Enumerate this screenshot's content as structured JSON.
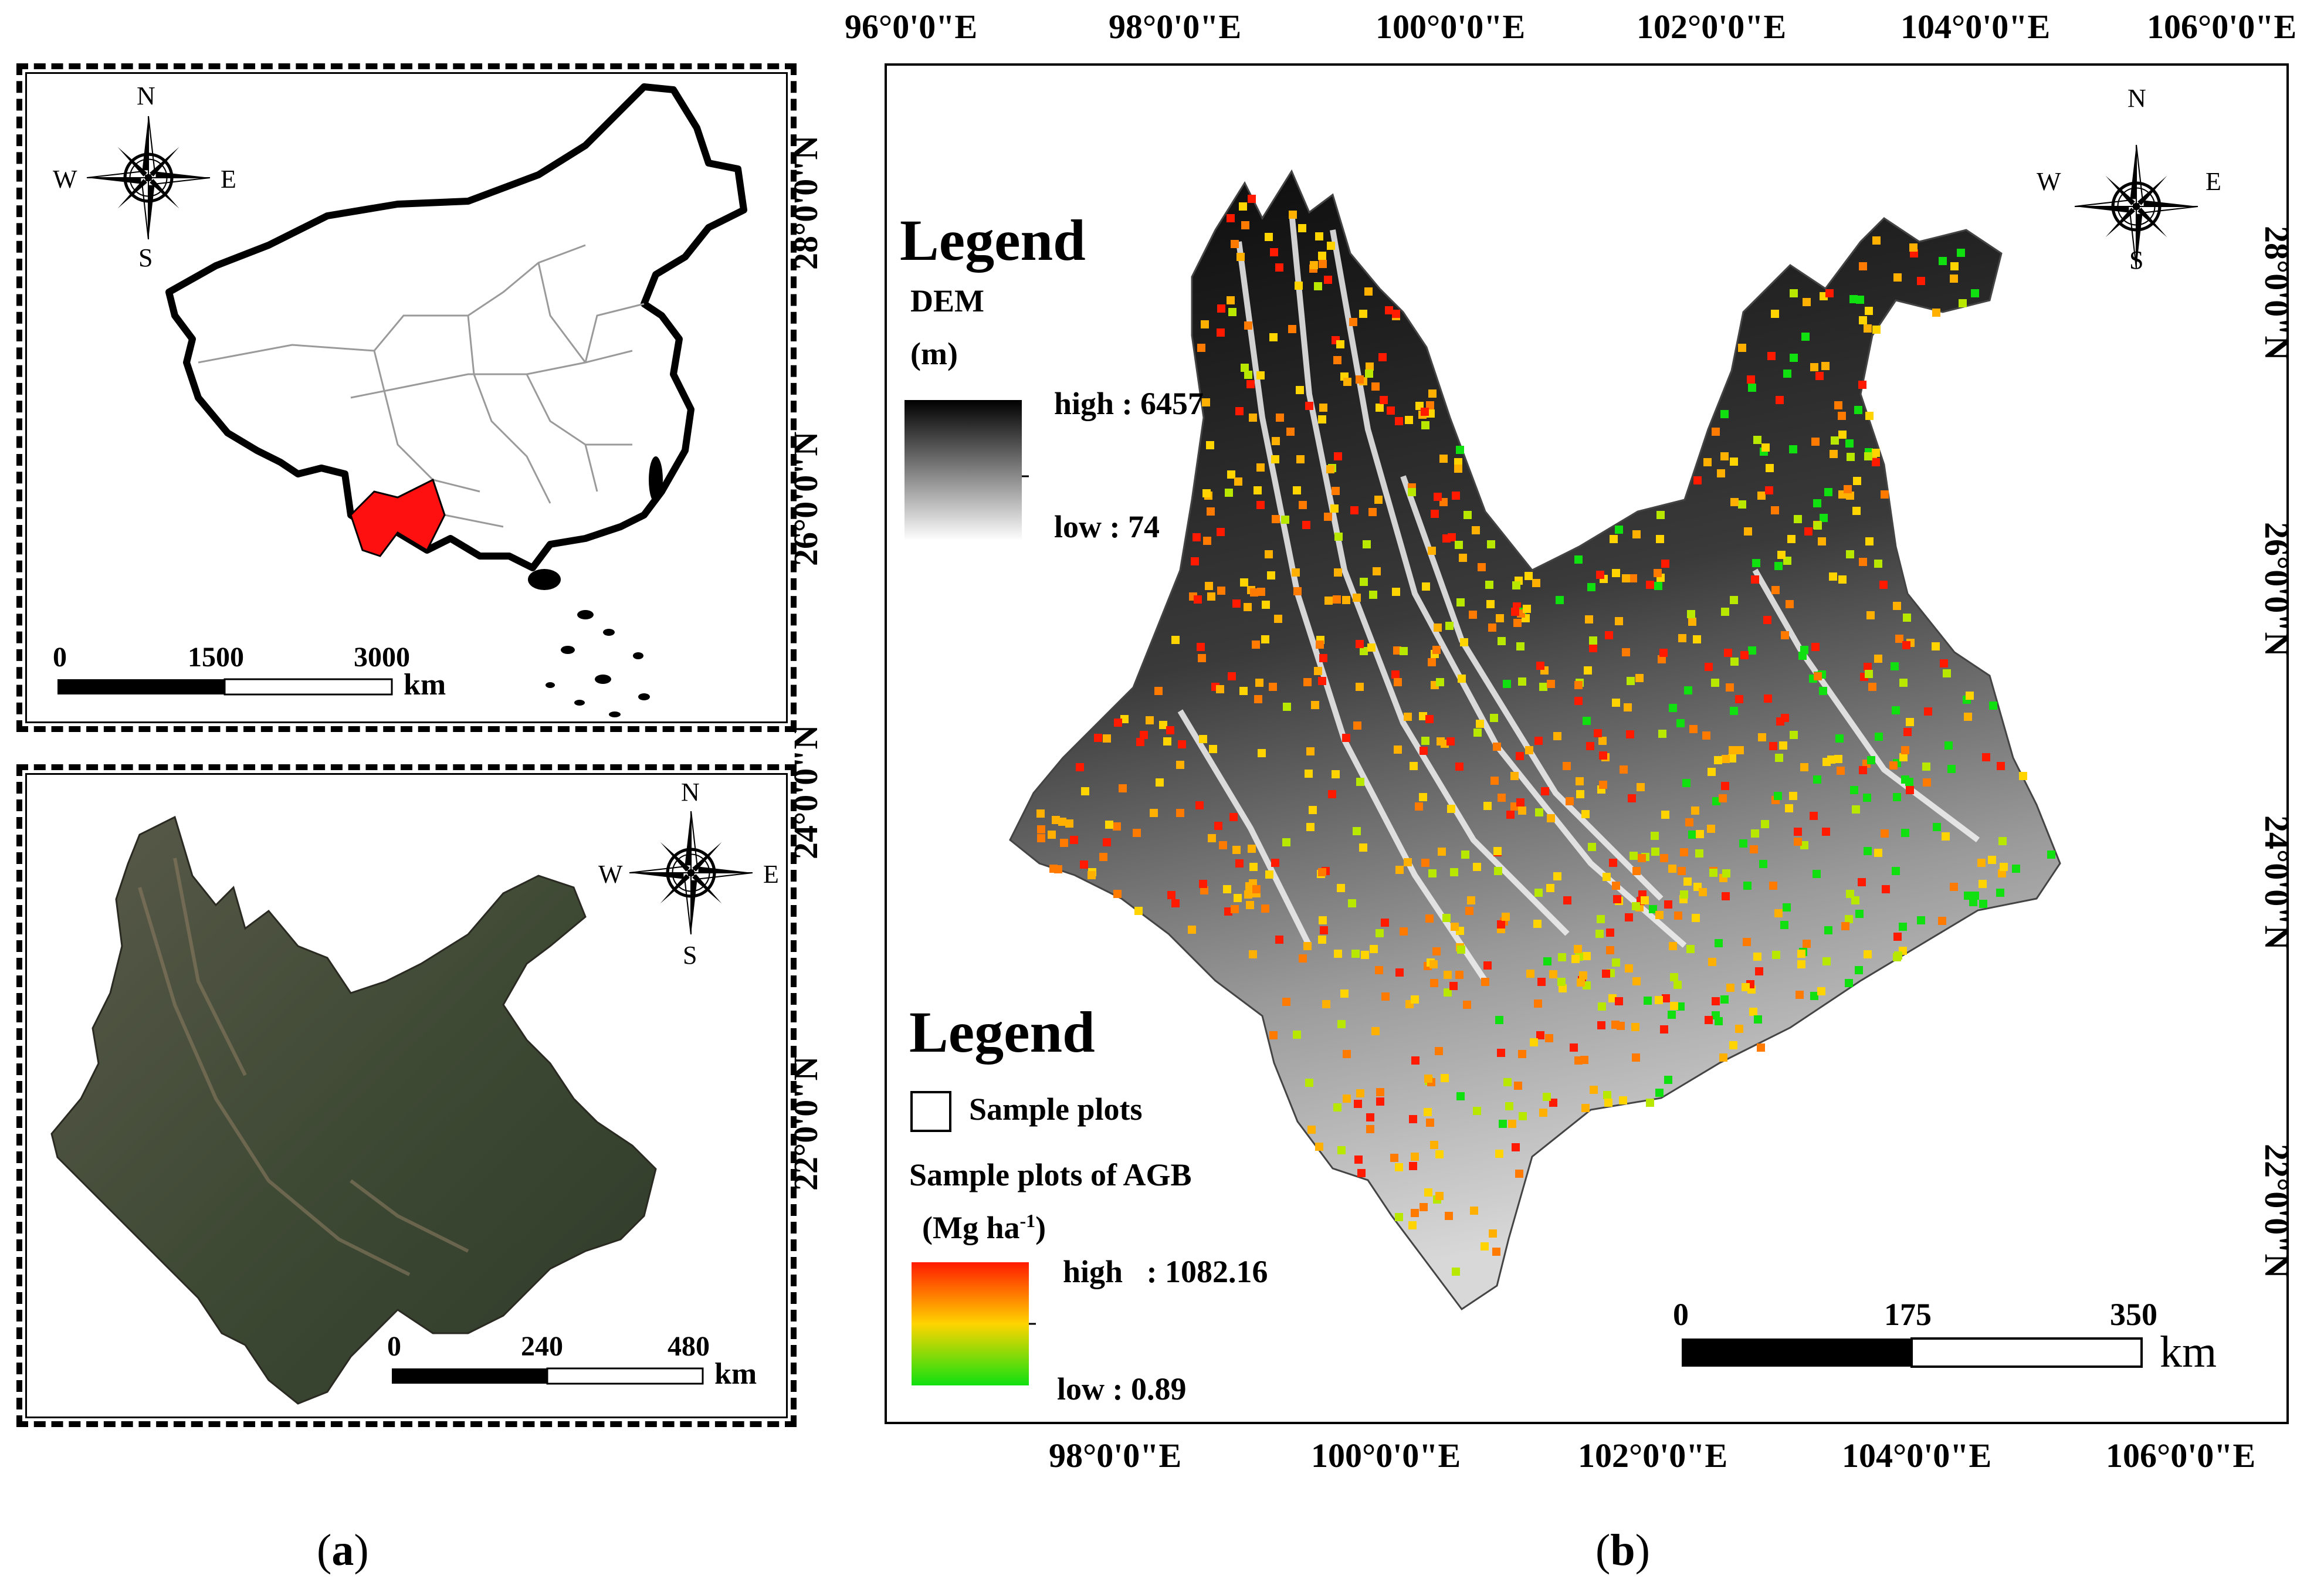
{
  "inset_china": {
    "north": "N",
    "south": "S",
    "east": "E",
    "west": "W",
    "scale_ticks": [
      "0",
      "1500",
      "3000"
    ],
    "scale_unit": "km",
    "highlight_color": "#ff1010",
    "compass_icon": "compass-rose-icon"
  },
  "inset_yunnan": {
    "north": "N",
    "south": "S",
    "east": "E",
    "west": "W",
    "scale_ticks": [
      "0",
      "240",
      "480"
    ],
    "scale_unit": "km",
    "compass_icon": "compass-rose-icon"
  },
  "main_map": {
    "north": "N",
    "south": "S",
    "east": "E",
    "west": "W",
    "top_lon_labels": [
      "96°0'0\"E",
      "98°0'0\"E",
      "100°0'0\"E",
      "102°0'0\"E",
      "104°0'0\"E",
      "106°0'0\"E"
    ],
    "bottom_lon_labels": [
      "98°0'0\"E",
      "100°0'0\"E",
      "102°0'0\"E",
      "104°0'0\"E",
      "106°0'0\"E"
    ],
    "left_lat_labels": [
      "28°0'0\"N",
      "26°0'0\"N",
      "24°0'0\"N",
      "22°0'0\"N"
    ],
    "right_lat_labels": [
      "28°0'0\"N",
      "26°0'0\"N",
      "24°0'0\"N",
      "22°0'0\"N"
    ],
    "dem_legend": {
      "title": "Legend",
      "label": "DEM",
      "unit": "(m)",
      "high": "high : 6457",
      "low": "low : 74"
    },
    "agb_legend": {
      "title": "Legend",
      "sample_plots_label": "Sample plots",
      "agb_label": "Sample plots of AGB",
      "unit": "(Mg ha",
      "unit_sup": "-1",
      "unit_close": ")",
      "high": "high   : 1082.16",
      "low": "low : 0.89"
    },
    "scale_ticks": [
      "0",
      "175",
      "350"
    ],
    "scale_unit": "km",
    "compass_icon": "compass-rose-icon",
    "agb_colors": {
      "high": "#ff1a00",
      "mid": "#ffd400",
      "low": "#10e010"
    }
  },
  "captions": {
    "a_open": "(",
    "a_letter": "a",
    "a_close": ")",
    "b_open": "(",
    "b_letter": "b",
    "b_close": ")"
  }
}
